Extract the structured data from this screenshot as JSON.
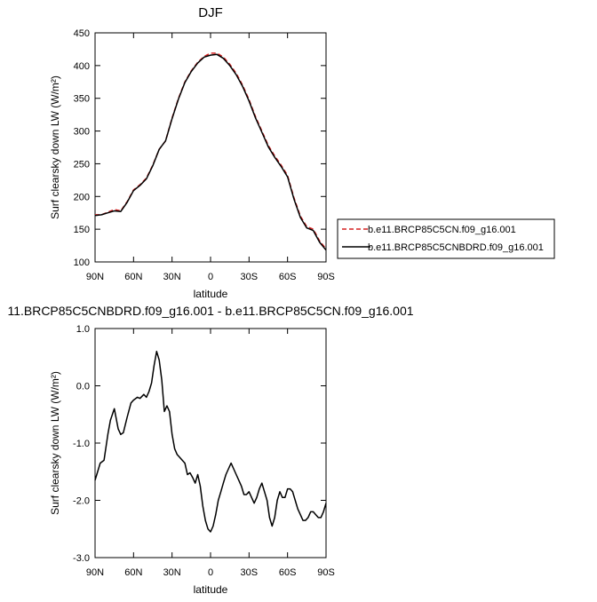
{
  "chart_data": [
    {
      "type": "line",
      "title": "DJF",
      "xlabel": "latitude",
      "ylabel": "Surf clearsky down LW (W/m²)",
      "xlim": [
        90,
        -90
      ],
      "ylim": [
        100,
        450
      ],
      "xticks": [
        90,
        60,
        30,
        0,
        -30,
        -60,
        -90
      ],
      "xtick_labels": [
        "90N",
        "60N",
        "30N",
        "0",
        "30S",
        "60S",
        "90S"
      ],
      "yticks": [
        100,
        150,
        200,
        250,
        300,
        350,
        400,
        450
      ],
      "ytick_labels": [
        "100",
        "150",
        "200",
        "250",
        "300",
        "350",
        "400",
        "450"
      ],
      "legend_position": "right",
      "series": [
        {
          "name": "b.e11.BRCP85C5CN.f09_g16.001",
          "color": "#d62020",
          "dash": "dashed",
          "x": [
            90,
            85,
            80,
            75,
            70,
            65,
            60,
            55,
            50,
            45,
            40,
            35,
            30,
            25,
            20,
            15,
            10,
            5,
            0,
            -5,
            -10,
            -15,
            -20,
            -25,
            -30,
            -35,
            -40,
            -45,
            -50,
            -55,
            -60,
            -65,
            -70,
            -75,
            -80,
            -85,
            -90
          ],
          "y": [
            172,
            172,
            176,
            180,
            178,
            192,
            210,
            218,
            228,
            248,
            272,
            285,
            320,
            350,
            375,
            392,
            405,
            414,
            419,
            419,
            413,
            402,
            388,
            370,
            348,
            322,
            300,
            278,
            262,
            248,
            232,
            198,
            170,
            154,
            150,
            132,
            120
          ]
        },
        {
          "name": "b.e11.BRCP85C5CNBDRD.f09_g16.001",
          "color": "#000000",
          "dash": "solid",
          "x": [
            90,
            85,
            80,
            75,
            70,
            65,
            60,
            55,
            50,
            45,
            40,
            35,
            30,
            25,
            20,
            15,
            10,
            5,
            0,
            -5,
            -10,
            -15,
            -20,
            -25,
            -30,
            -35,
            -40,
            -45,
            -50,
            -55,
            -60,
            -65,
            -70,
            -75,
            -80,
            -85,
            -90
          ],
          "y": [
            171,
            172,
            175,
            178,
            177,
            191,
            209,
            217,
            227,
            247,
            272,
            285,
            319,
            349,
            374,
            391,
            404,
            413,
            416,
            417,
            411,
            400,
            386,
            368,
            346,
            320,
            298,
            276,
            260,
            246,
            230,
            196,
            168,
            152,
            148,
            130,
            118
          ]
        }
      ]
    },
    {
      "type": "line",
      "title": "11.BRCP85C5CNBDRD.f09_g16.001 - b.e11.BRCP85C5CN.f09_g16.001",
      "xlabel": "latitude",
      "ylabel": "Surf clearsky down LW (W/m²)",
      "xlim": [
        90,
        -90
      ],
      "ylim": [
        -3.0,
        1.0
      ],
      "xticks": [
        90,
        60,
        30,
        0,
        -30,
        -60,
        -90
      ],
      "xtick_labels": [
        "90N",
        "60N",
        "30N",
        "0",
        "30S",
        "60S",
        "90S"
      ],
      "yticks": [
        -3.0,
        -2.0,
        -1.0,
        0.0,
        1.0
      ],
      "ytick_labels": [
        "-3.0",
        "-2.0",
        "-1.0",
        "0.0",
        "1.0"
      ],
      "series": [
        {
          "color": "#000000",
          "dash": "solid",
          "x": [
            90,
            86,
            83,
            80,
            78,
            75,
            72,
            70,
            68,
            65,
            62,
            60,
            57,
            55,
            52,
            50,
            48,
            46,
            44,
            42,
            40,
            38,
            36,
            34,
            32,
            30,
            28,
            26,
            24,
            22,
            20,
            18,
            16,
            14,
            12,
            10,
            8,
            6,
            4,
            2,
            0,
            -2,
            -4,
            -6,
            -8,
            -10,
            -12,
            -14,
            -16,
            -18,
            -20,
            -22,
            -24,
            -26,
            -28,
            -30,
            -32,
            -34,
            -36,
            -38,
            -40,
            -42,
            -44,
            -46,
            -48,
            -50,
            -52,
            -54,
            -56,
            -58,
            -60,
            -62,
            -64,
            -66,
            -68,
            -70,
            -72,
            -74,
            -76,
            -78,
            -80,
            -82,
            -84,
            -86,
            -88,
            -90
          ],
          "y": [
            -1.65,
            -1.35,
            -1.3,
            -0.85,
            -0.6,
            -0.4,
            -0.75,
            -0.85,
            -0.82,
            -0.55,
            -0.3,
            -0.25,
            -0.2,
            -0.22,
            -0.15,
            -0.2,
            -0.1,
            0.05,
            0.35,
            0.6,
            0.45,
            0.1,
            -0.45,
            -0.35,
            -0.45,
            -0.85,
            -1.1,
            -1.2,
            -1.25,
            -1.3,
            -1.35,
            -1.55,
            -1.52,
            -1.6,
            -1.7,
            -1.55,
            -1.75,
            -2.1,
            -2.35,
            -2.5,
            -2.55,
            -2.45,
            -2.25,
            -2.0,
            -1.85,
            -1.7,
            -1.55,
            -1.45,
            -1.35,
            -1.45,
            -1.55,
            -1.65,
            -1.75,
            -1.9,
            -1.9,
            -1.85,
            -1.95,
            -2.05,
            -1.95,
            -1.8,
            -1.7,
            -1.85,
            -2.0,
            -2.3,
            -2.45,
            -2.3,
            -2.0,
            -1.85,
            -1.95,
            -1.95,
            -1.8,
            -1.8,
            -1.85,
            -2.0,
            -2.15,
            -2.25,
            -2.35,
            -2.35,
            -2.3,
            -2.2,
            -2.2,
            -2.25,
            -2.3,
            -2.3,
            -2.2,
            -2.05
          ]
        }
      ]
    }
  ]
}
